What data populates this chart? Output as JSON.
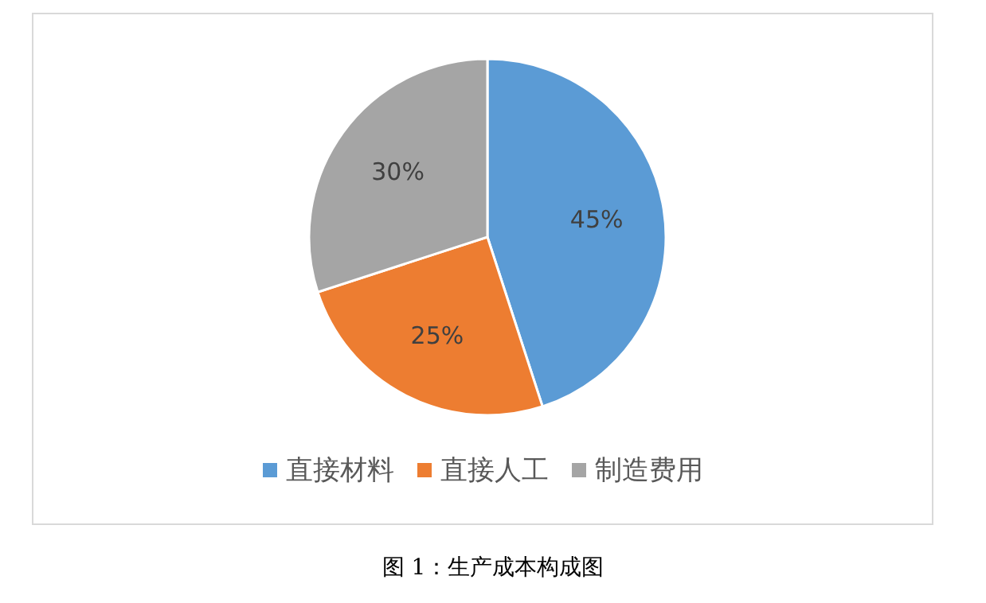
{
  "chart_data": {
    "type": "pie",
    "categories": [
      "直接材料",
      "直接人工",
      "制造费用"
    ],
    "values": [
      45,
      25,
      30
    ],
    "colors": [
      "#5b9bd5",
      "#ed7d31",
      "#a5a5a5"
    ],
    "value_labels": [
      "45%",
      "25%",
      "30%"
    ],
    "legend": "bottom",
    "annotations": [
      "图 1：生产成本构成图"
    ]
  }
}
